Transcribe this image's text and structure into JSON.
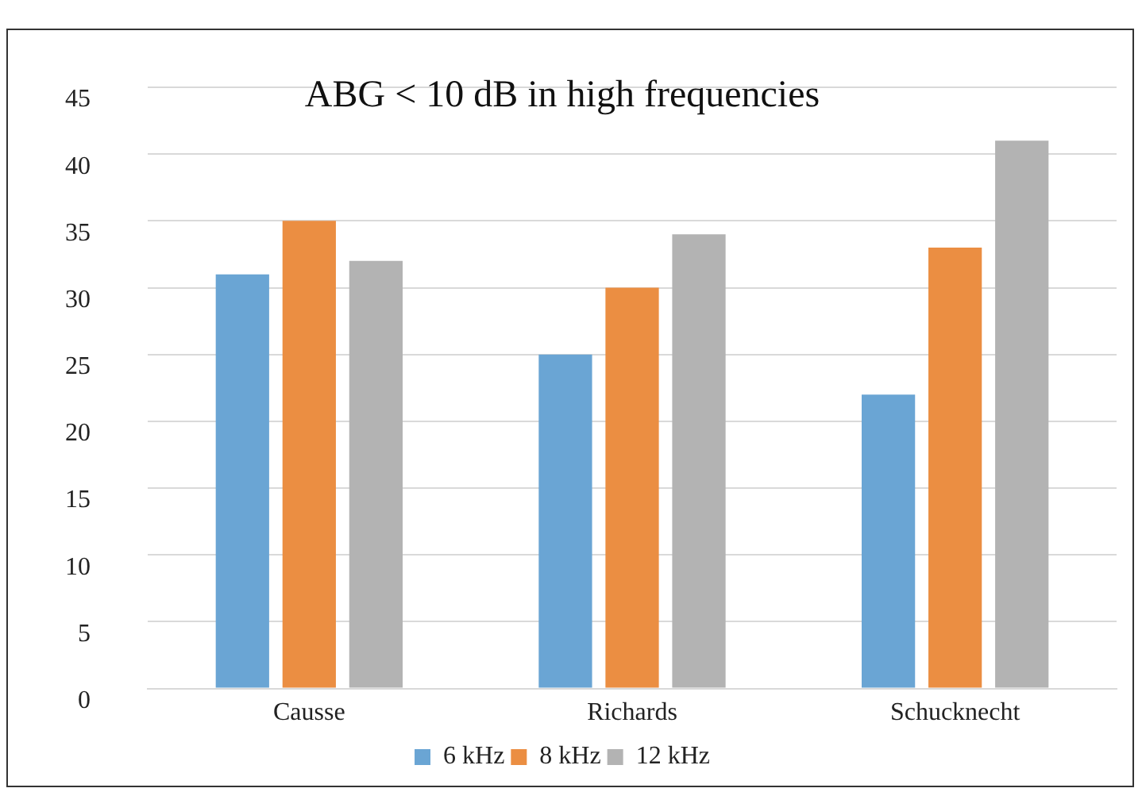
{
  "chart_data": {
    "type": "bar",
    "title": "ABG < 10 dB in high frequencies",
    "categories": [
      "Causse",
      "Richards",
      "Schucknecht"
    ],
    "series": [
      {
        "name": "6 kHz",
        "color": "#6aa5d4",
        "values": [
          31,
          25,
          22
        ]
      },
      {
        "name": "8 kHz",
        "color": "#eb8e42",
        "values": [
          35,
          30,
          33
        ]
      },
      {
        "name": "12 kHz",
        "color": "#b3b3b3",
        "values": [
          32,
          34,
          41
        ]
      }
    ],
    "ylim": [
      0,
      45
    ],
    "yticks": [
      0,
      5,
      10,
      15,
      20,
      25,
      30,
      35,
      40,
      45
    ],
    "grid": "y",
    "legend": "bottom"
  }
}
